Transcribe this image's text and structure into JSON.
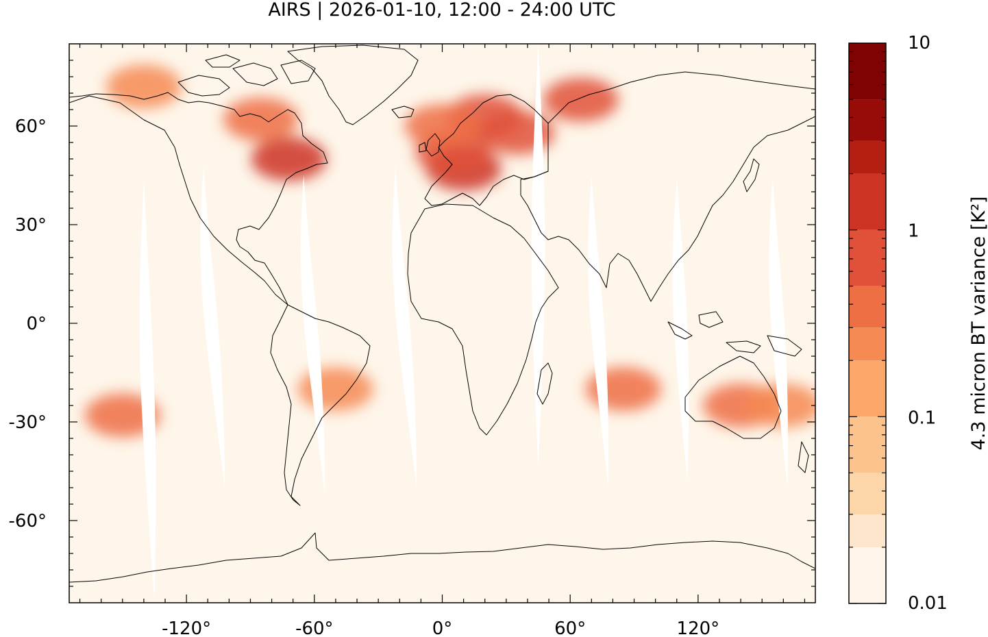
{
  "title": "AIRS | 2026-01-10, 12:00 - 24:00 UTC",
  "map": {
    "projection": "equirectangular",
    "lon_range": [
      -175,
      175
    ],
    "lat_range": [
      -85,
      85
    ],
    "x_ticks": [
      {
        "value": -120,
        "label": "-120°"
      },
      {
        "value": -60,
        "label": "-60°"
      },
      {
        "value": 0,
        "label": "0°"
      },
      {
        "value": 60,
        "label": "60°"
      },
      {
        "value": 120,
        "label": "120°"
      }
    ],
    "y_ticks": [
      {
        "value": 60,
        "label": "60°"
      },
      {
        "value": 30,
        "label": "30°"
      },
      {
        "value": 0,
        "label": "0°"
      },
      {
        "value": -30,
        "label": "-30°"
      },
      {
        "value": -60,
        "label": "-60°"
      }
    ],
    "background_color": "#fef6ea",
    "coastline_color": "#000000",
    "hotspots": [
      {
        "lon": 20,
        "lat": 63,
        "value": 0.8
      },
      {
        "lon": 35,
        "lat": 58,
        "value": 0.6
      },
      {
        "lon": 10,
        "lat": 47,
        "value": 1.5
      },
      {
        "lon": 5,
        "lat": 52,
        "value": 0.9
      },
      {
        "lon": -72,
        "lat": 50,
        "value": 1.2
      },
      {
        "lon": -85,
        "lat": 62,
        "value": 0.35
      },
      {
        "lon": 0,
        "lat": 60,
        "value": 0.4
      },
      {
        "lon": 65,
        "lat": 68,
        "value": 0.5
      },
      {
        "lon": -140,
        "lat": 72,
        "value": 0.25
      },
      {
        "lon": -150,
        "lat": -28,
        "value": 0.3
      },
      {
        "lon": -50,
        "lat": -20,
        "value": 0.25
      },
      {
        "lon": 85,
        "lat": -20,
        "value": 0.3
      },
      {
        "lon": 140,
        "lat": -25,
        "value": 0.3
      },
      {
        "lon": 160,
        "lat": -25,
        "value": 0.25
      }
    ],
    "swath_gaps": [
      {
        "top_lon": -140,
        "bottom_lon": -135,
        "lat_top": 44,
        "lat_bottom": -85
      },
      {
        "top_lon": -112,
        "bottom_lon": -102,
        "lat_top": 48,
        "lat_bottom": -50
      },
      {
        "top_lon": -65,
        "bottom_lon": -55,
        "lat_top": 45,
        "lat_bottom": -52
      },
      {
        "top_lon": -22,
        "bottom_lon": -12,
        "lat_top": 48,
        "lat_bottom": -50
      },
      {
        "top_lon": 45,
        "bottom_lon": 45,
        "lat_top": 85,
        "lat_bottom": -44
      },
      {
        "top_lon": 70,
        "bottom_lon": 78,
        "lat_top": 45,
        "lat_bottom": -50
      },
      {
        "top_lon": 110,
        "bottom_lon": 115,
        "lat_top": 44,
        "lat_bottom": -48
      },
      {
        "top_lon": 155,
        "bottom_lon": 162,
        "lat_top": 44,
        "lat_bottom": -50
      }
    ]
  },
  "colorbar": {
    "label": "4.3 micron BT variance [K²]",
    "scale": "log",
    "range": [
      0.01,
      10
    ],
    "ticks": [
      {
        "value": 0.01,
        "label": "0.01"
      },
      {
        "value": 0.1,
        "label": "0.1"
      },
      {
        "value": 1,
        "label": "1"
      },
      {
        "value": 10,
        "label": "10"
      }
    ],
    "levels": [
      0.01,
      0.02,
      0.03,
      0.05,
      0.1,
      0.2,
      0.3,
      0.5,
      1,
      2,
      3,
      5,
      10
    ],
    "colors": [
      "#fef6ea",
      "#fde6cb",
      "#fcd5a9",
      "#fcc48c",
      "#fca66a",
      "#f68a53",
      "#ee6f44",
      "#e15139",
      "#cd3323",
      "#b41f14",
      "#970b08",
      "#7f0303"
    ]
  }
}
